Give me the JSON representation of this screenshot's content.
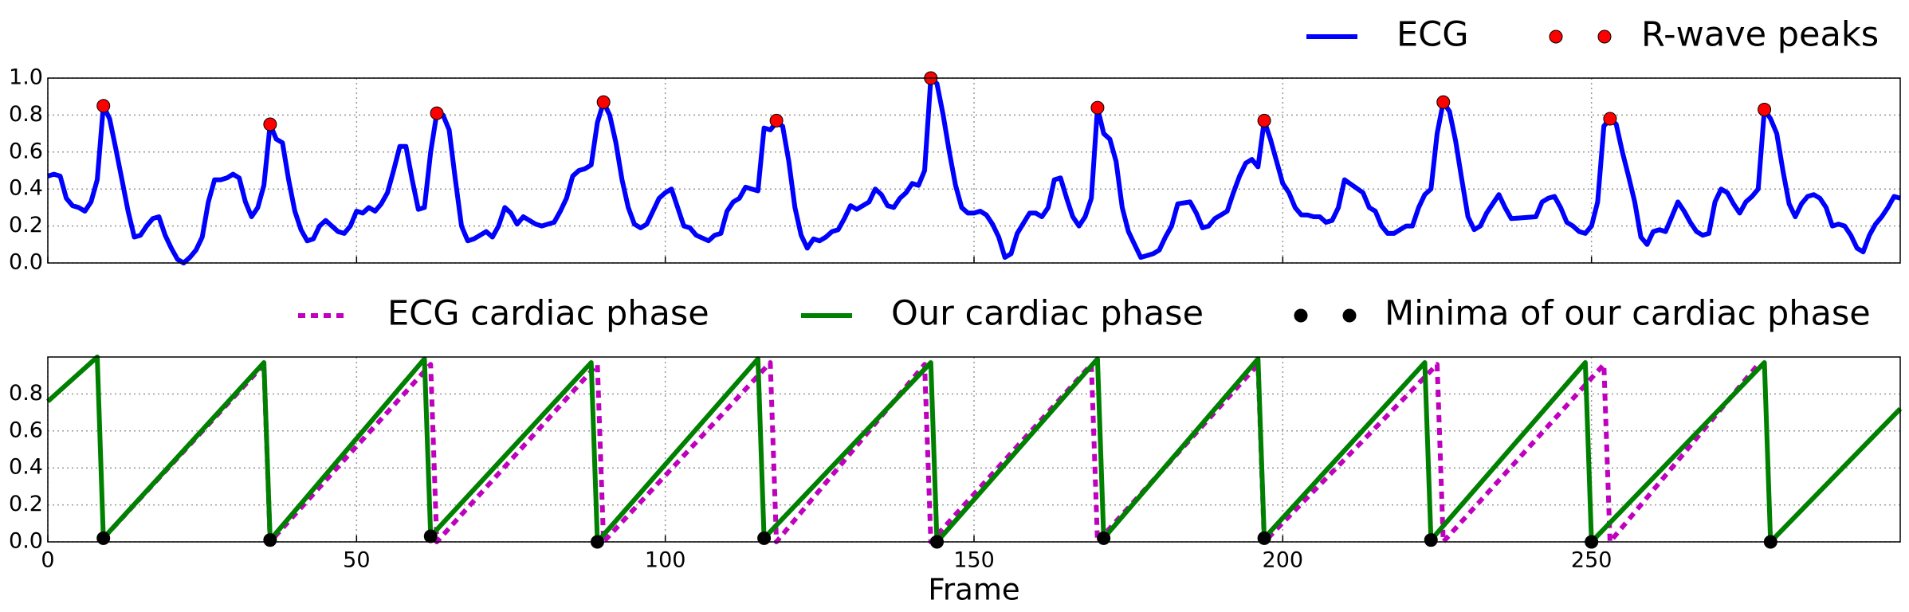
{
  "chart_data": [
    {
      "type": "line",
      "xlim": [
        0,
        300
      ],
      "xticks": [
        0,
        50,
        100,
        150,
        200,
        250
      ],
      "show_xtick_labels": false,
      "ylim": [
        0,
        1.0
      ],
      "yticks": [
        {
          "value": 0,
          "label": "0.0"
        },
        0.2,
        0.4,
        0.6,
        0.8,
        {
          "value": 1,
          "label": "1.0"
        }
      ],
      "grid": true,
      "series": [
        {
          "name": "ECG",
          "color": "#0000ff",
          "style": "line",
          "x": [
            0,
            1,
            2,
            3,
            4,
            5,
            6,
            7,
            8,
            9,
            10,
            11,
            12,
            13,
            14,
            15,
            16,
            17,
            18,
            19,
            20,
            21,
            22,
            23,
            24,
            25,
            26,
            27,
            28,
            29,
            30,
            31,
            32,
            33,
            34,
            35,
            36,
            37,
            38,
            39,
            40,
            41,
            42,
            43,
            44,
            45,
            46,
            47,
            48,
            49,
            50,
            51,
            52,
            53,
            54,
            55,
            56,
            57,
            58,
            59,
            60,
            61,
            62,
            63,
            64,
            65,
            66,
            67,
            68,
            69,
            70,
            71,
            72,
            73,
            74,
            75,
            76,
            77,
            78,
            79,
            80,
            81,
            82,
            83,
            84,
            85,
            86,
            87,
            88,
            89,
            90,
            91,
            92,
            93,
            94,
            95,
            96,
            97,
            98,
            99,
            100,
            101,
            102,
            103,
            104,
            105,
            107,
            108,
            109,
            110,
            111,
            112,
            113,
            114,
            115,
            116,
            117,
            118,
            119,
            120,
            121,
            122,
            123,
            124,
            125,
            126,
            127,
            128,
            129,
            130,
            131,
            133,
            134,
            135,
            136,
            137,
            138,
            139,
            140,
            141,
            142,
            143,
            144,
            145,
            146,
            147,
            148,
            149,
            150,
            151,
            152,
            153,
            154,
            155,
            156,
            157,
            159,
            160,
            161,
            162,
            163,
            164,
            165,
            166,
            167,
            168,
            169,
            170,
            171,
            172,
            173,
            174,
            175,
            176,
            177,
            178,
            179,
            180,
            181,
            182,
            183,
            185,
            186,
            187,
            188,
            189,
            190,
            191,
            192,
            193,
            194,
            195,
            196,
            197,
            198,
            199,
            200,
            201,
            202,
            203,
            204,
            205,
            206,
            207,
            208,
            209,
            210,
            213,
            214,
            215,
            216,
            217,
            218,
            219,
            220,
            221,
            222,
            223,
            224,
            225,
            226,
            227,
            228,
            229,
            230,
            231,
            232,
            233,
            234,
            235,
            236,
            237,
            241,
            242,
            243,
            244,
            245,
            246,
            247,
            248,
            249,
            250,
            251,
            252,
            253,
            254,
            255,
            256,
            257,
            258,
            259,
            260,
            261,
            262,
            263,
            264,
            265,
            266,
            267,
            268,
            269,
            270,
            271,
            272,
            273,
            274,
            275,
            276,
            277,
            278,
            279,
            280,
            281,
            282,
            283,
            284,
            285,
            286,
            287,
            288,
            289,
            290,
            291,
            292,
            293,
            294,
            295,
            296,
            297,
            298,
            299,
            300
          ],
          "values": [
            0.47,
            0.48,
            0.47,
            0.35,
            0.31,
            0.3,
            0.28,
            0.33,
            0.45,
            0.85,
            0.78,
            0.62,
            0.45,
            0.28,
            0.14,
            0.15,
            0.2,
            0.24,
            0.25,
            0.15,
            0.08,
            0.02,
            0.0,
            0.03,
            0.07,
            0.14,
            0.33,
            0.45,
            0.45,
            0.46,
            0.48,
            0.46,
            0.33,
            0.25,
            0.3,
            0.42,
            0.75,
            0.67,
            0.65,
            0.45,
            0.28,
            0.18,
            0.12,
            0.13,
            0.2,
            0.23,
            0.2,
            0.17,
            0.16,
            0.2,
            0.28,
            0.27,
            0.3,
            0.28,
            0.32,
            0.38,
            0.5,
            0.63,
            0.63,
            0.45,
            0.29,
            0.3,
            0.6,
            0.81,
            0.8,
            0.72,
            0.45,
            0.2,
            0.12,
            0.13,
            0.15,
            0.17,
            0.14,
            0.2,
            0.3,
            0.27,
            0.21,
            0.25,
            0.23,
            0.21,
            0.2,
            0.21,
            0.22,
            0.28,
            0.35,
            0.47,
            0.5,
            0.51,
            0.53,
            0.76,
            0.87,
            0.8,
            0.65,
            0.45,
            0.3,
            0.21,
            0.19,
            0.21,
            0.28,
            0.35,
            0.38,
            0.4,
            0.3,
            0.2,
            0.19,
            0.15,
            0.12,
            0.15,
            0.16,
            0.28,
            0.33,
            0.35,
            0.41,
            0.4,
            0.39,
            0.73,
            0.72,
            0.76,
            0.74,
            0.55,
            0.3,
            0.15,
            0.08,
            0.13,
            0.12,
            0.14,
            0.17,
            0.18,
            0.24,
            0.31,
            0.29,
            0.33,
            0.4,
            0.37,
            0.31,
            0.3,
            0.35,
            0.38,
            0.43,
            0.42,
            0.5,
            1.0,
            0.97,
            0.8,
            0.6,
            0.42,
            0.3,
            0.27,
            0.27,
            0.28,
            0.26,
            0.21,
            0.14,
            0.03,
            0.05,
            0.16,
            0.27,
            0.27,
            0.25,
            0.3,
            0.45,
            0.46,
            0.35,
            0.25,
            0.2,
            0.25,
            0.35,
            0.84,
            0.7,
            0.67,
            0.55,
            0.3,
            0.17,
            0.1,
            0.03,
            0.04,
            0.05,
            0.07,
            0.14,
            0.2,
            0.32,
            0.33,
            0.27,
            0.19,
            0.2,
            0.24,
            0.26,
            0.28,
            0.38,
            0.47,
            0.54,
            0.56,
            0.52,
            0.77,
            0.67,
            0.55,
            0.43,
            0.38,
            0.3,
            0.26,
            0.26,
            0.25,
            0.25,
            0.22,
            0.23,
            0.3,
            0.45,
            0.38,
            0.3,
            0.28,
            0.2,
            0.16,
            0.16,
            0.18,
            0.2,
            0.2,
            0.3,
            0.37,
            0.4,
            0.7,
            0.87,
            0.82,
            0.66,
            0.45,
            0.25,
            0.18,
            0.2,
            0.27,
            0.32,
            0.37,
            0.3,
            0.24,
            0.25,
            0.33,
            0.35,
            0.36,
            0.3,
            0.22,
            0.2,
            0.17,
            0.16,
            0.2,
            0.33,
            0.74,
            0.78,
            0.75,
            0.6,
            0.47,
            0.33,
            0.14,
            0.1,
            0.17,
            0.18,
            0.17,
            0.25,
            0.33,
            0.28,
            0.22,
            0.17,
            0.15,
            0.16,
            0.33,
            0.4,
            0.38,
            0.32,
            0.27,
            0.33,
            0.36,
            0.4,
            0.83,
            0.78,
            0.7,
            0.5,
            0.32,
            0.25,
            0.32,
            0.36,
            0.37,
            0.35,
            0.3,
            0.2,
            0.21,
            0.2,
            0.15,
            0.08,
            0.06,
            0.15,
            0.21,
            0.25,
            0.3,
            0.36,
            0.35
          ]
        },
        {
          "name": "R-wave peaks",
          "color": "#ff0000",
          "style": "scatter",
          "x": [
            9,
            36,
            63,
            90,
            118,
            143,
            170,
            197,
            226,
            253,
            278
          ],
          "values": [
            0.85,
            0.75,
            0.81,
            0.87,
            0.77,
            1.0,
            0.84,
            0.77,
            0.87,
            0.78,
            0.83
          ]
        }
      ]
    },
    {
      "type": "line",
      "xlabel": "Frame",
      "xlim": [
        0,
        300
      ],
      "xticks": [
        0,
        50,
        100,
        150,
        200,
        250
      ],
      "show_xtick_labels": true,
      "ylim": [
        0,
        1.0
      ],
      "yticks": [
        {
          "value": 0,
          "label": "0.0"
        },
        0.2,
        0.4,
        0.6,
        0.8
      ],
      "grid": true,
      "series": [
        {
          "name": "ECG cardiac phase",
          "color": "#bf00bf",
          "style": "dashed",
          "x": [
            9,
            35,
            36,
            62,
            63,
            89,
            90,
            117,
            118,
            142,
            143,
            169,
            170,
            196,
            197,
            225,
            226,
            252,
            253,
            277
          ],
          "values": [
            0.02,
            0.96,
            0,
            0.96,
            0,
            0.96,
            0,
            0.97,
            0,
            0.96,
            0,
            0.96,
            0,
            0.96,
            0,
            0.96,
            0,
            0.96,
            0,
            0.96
          ]
        },
        {
          "name": "Our cardiac phase",
          "color": "#008000",
          "style": "line",
          "x": [
            0,
            8,
            9,
            35,
            36,
            61,
            62,
            88,
            89,
            115,
            116,
            143,
            144,
            170,
            171,
            196,
            197,
            223,
            224,
            249,
            250,
            278,
            279,
            300
          ],
          "values": [
            0.76,
            1.0,
            0.02,
            0.97,
            0.01,
            0.99,
            0.03,
            0.97,
            0.0,
            0.99,
            0.02,
            0.97,
            0.0,
            0.99,
            0.02,
            0.99,
            0.02,
            0.97,
            0.01,
            0.97,
            0.0,
            0.97,
            0.0,
            0.72
          ]
        },
        {
          "name": "Minima of our cardiac phase",
          "color": "#000000",
          "style": "scatter",
          "x": [
            9,
            36,
            62,
            89,
            116,
            144,
            171,
            197,
            224,
            250,
            279
          ],
          "values": [
            0.02,
            0.01,
            0.03,
            0.0,
            0.02,
            0.0,
            0.02,
            0.02,
            0.01,
            0.0,
            0.0
          ]
        }
      ]
    }
  ]
}
